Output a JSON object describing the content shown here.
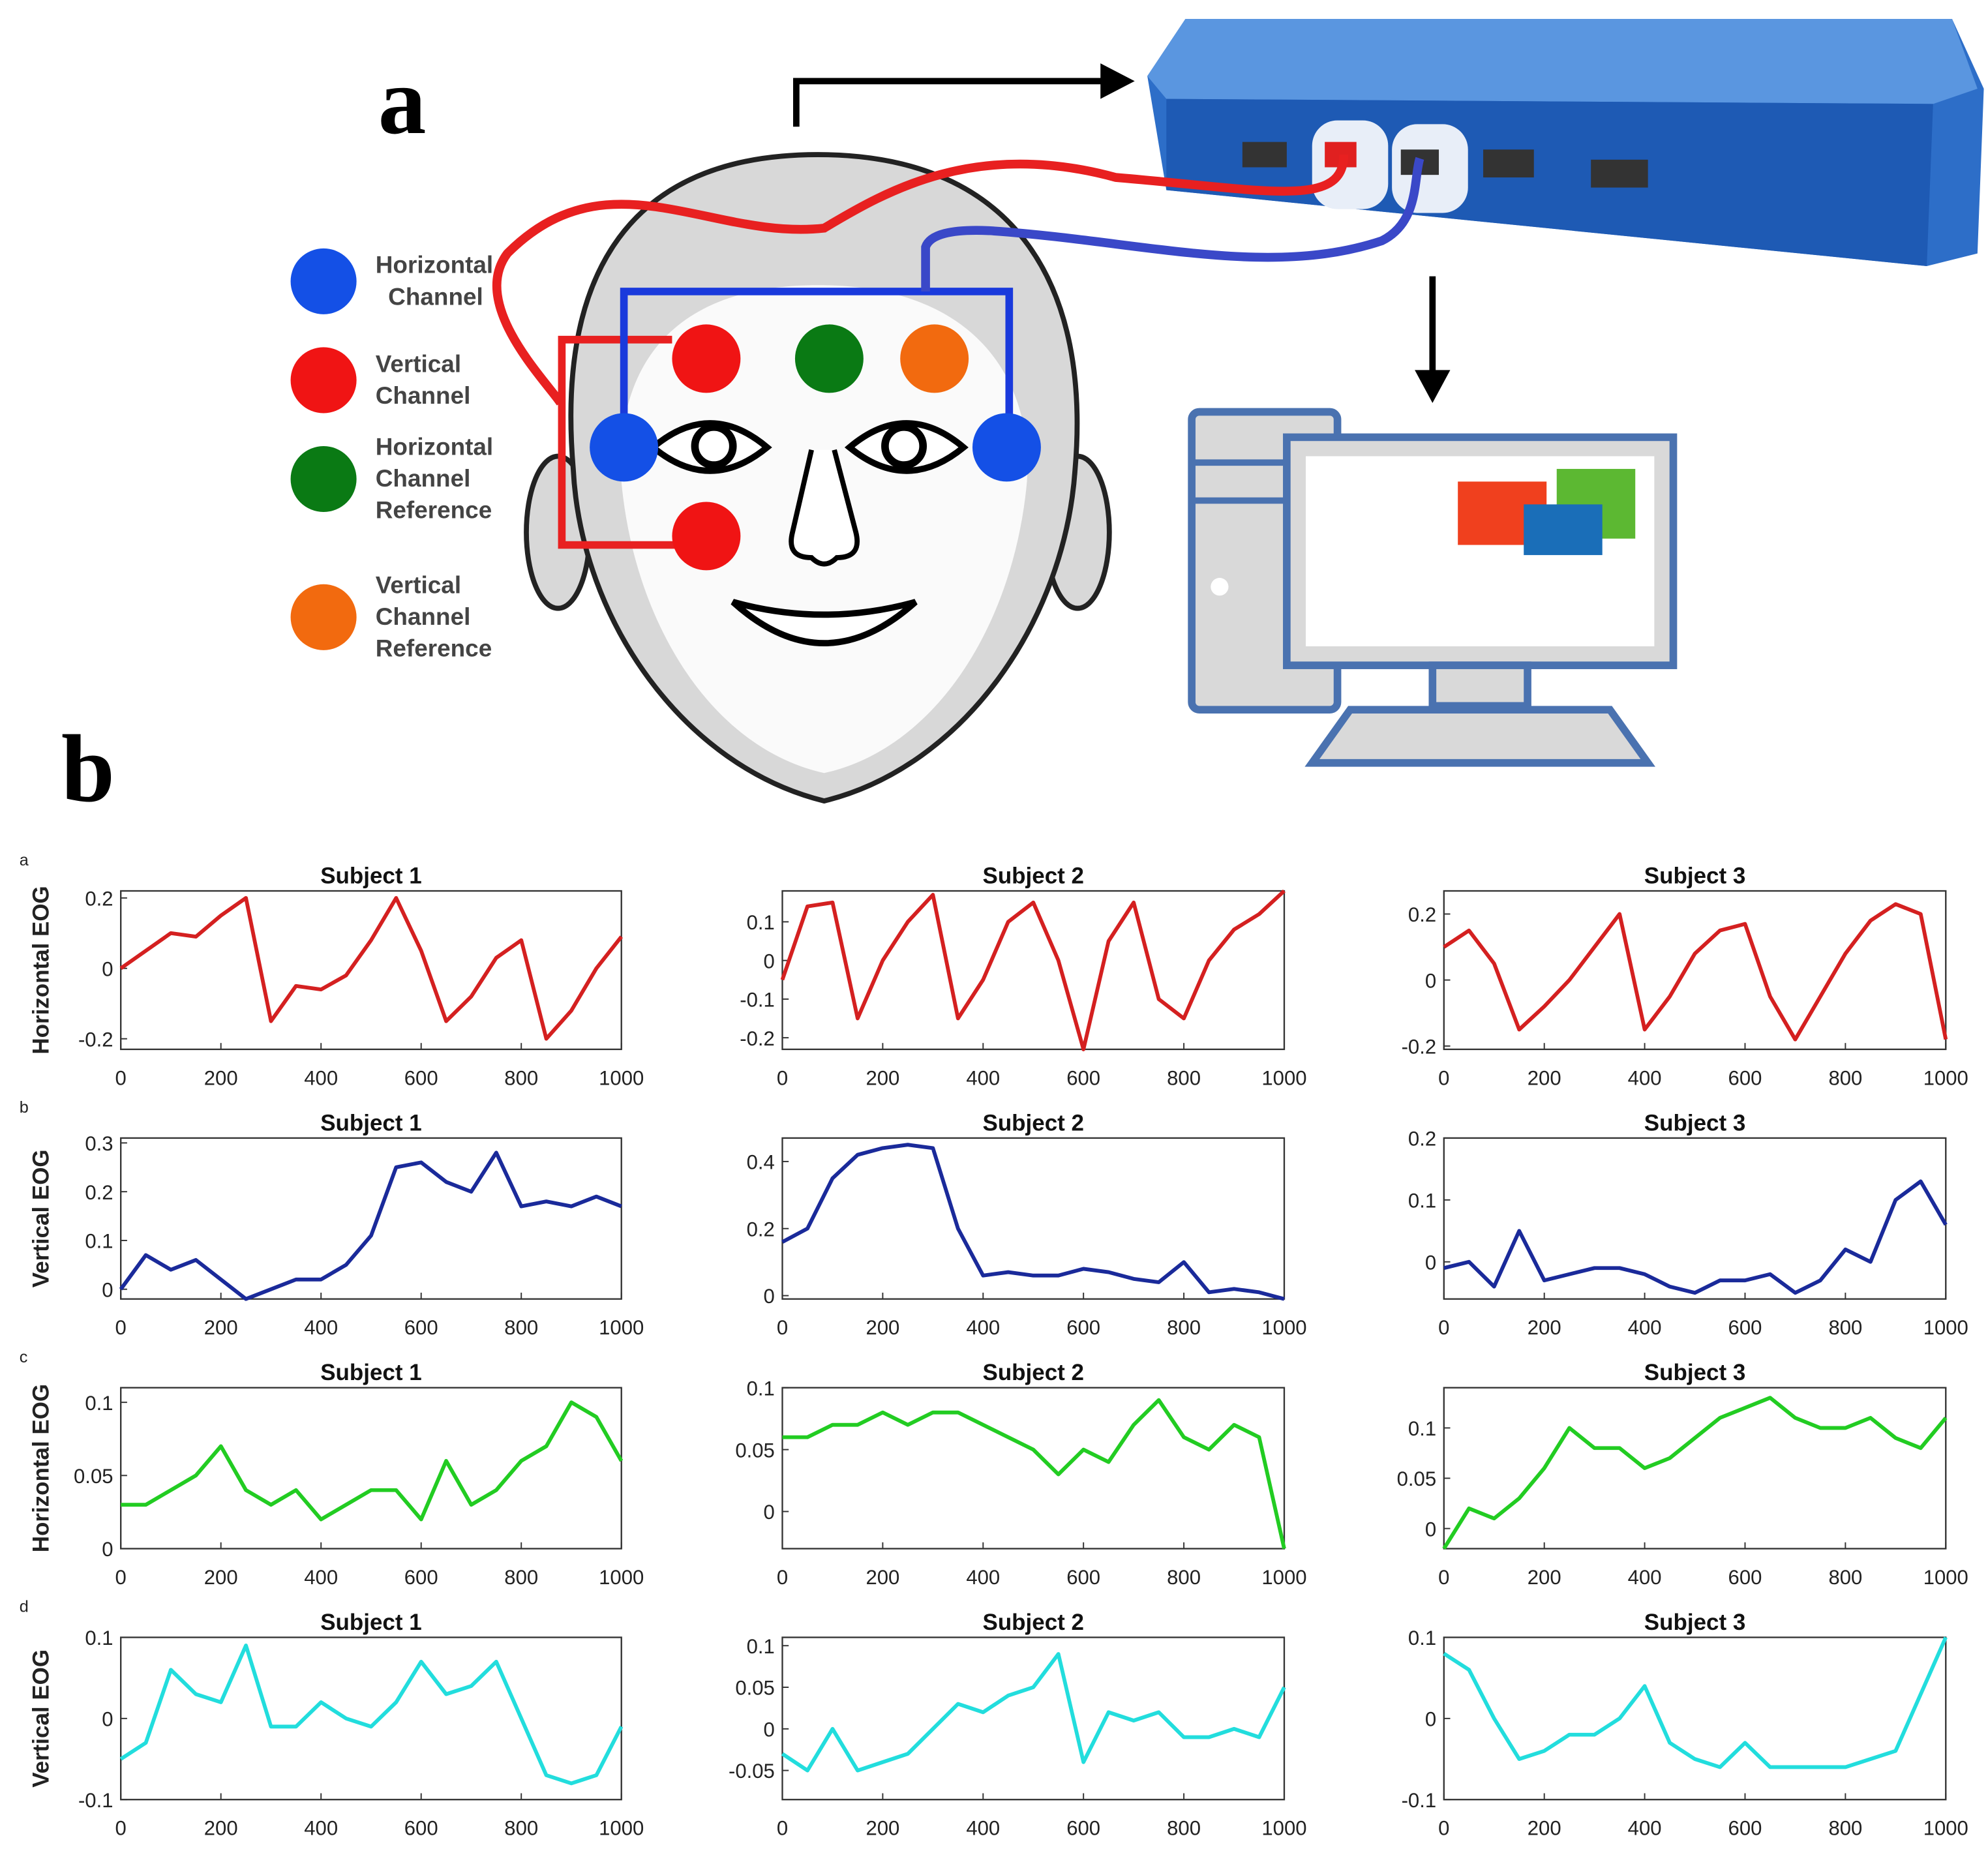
{
  "figure": {
    "panel_a": "a",
    "panel_b": "b",
    "legend": [
      {
        "color": "#1450e6",
        "lines": [
          "Horizontal",
          "Channel"
        ]
      },
      {
        "color": "#f01414",
        "lines": [
          "Vertical",
          "Channel"
        ]
      },
      {
        "color": "#0a7a14",
        "lines": [
          "Horizontal",
          "Channel",
          "Reference"
        ]
      },
      {
        "color": "#f26a0f",
        "lines": [
          "Vertical",
          "Channel",
          "Reference"
        ]
      }
    ]
  },
  "chart_data": [
    {
      "type": "line",
      "row_label": "a",
      "title": "Subject 1",
      "ylabel": "Horizontal EOG",
      "x": [
        0,
        50,
        100,
        150,
        200,
        250,
        300,
        350,
        400,
        450,
        500,
        550,
        600,
        650,
        700,
        750,
        800,
        850,
        900,
        950,
        1000
      ],
      "xlim": [
        0,
        1000
      ],
      "xticks": [
        0,
        200,
        400,
        600,
        800,
        1000
      ],
      "ylim": [
        -0.23,
        0.22
      ],
      "yticks": [
        -0.2,
        0,
        0.2
      ],
      "series": [
        {
          "color": "#d42020",
          "values": [
            0,
            0.05,
            0.1,
            0.09,
            0.15,
            0.2,
            -0.15,
            -0.05,
            -0.06,
            -0.02,
            0.08,
            0.2,
            0.05,
            -0.15,
            -0.08,
            0.03,
            0.08,
            -0.2,
            -0.12,
            0,
            0.09
          ]
        }
      ]
    },
    {
      "type": "line",
      "title": "Subject 2",
      "x": [
        0,
        50,
        100,
        150,
        200,
        250,
        300,
        350,
        400,
        450,
        500,
        550,
        600,
        650,
        700,
        750,
        800,
        850,
        900,
        950,
        1000
      ],
      "xlim": [
        0,
        1000
      ],
      "xticks": [
        0,
        200,
        400,
        600,
        800,
        1000
      ],
      "ylim": [
        -0.23,
        0.18
      ],
      "yticks": [
        -0.2,
        -0.1,
        0,
        0.1
      ],
      "series": [
        {
          "color": "#d42020",
          "values": [
            -0.05,
            0.14,
            0.15,
            -0.15,
            0,
            0.1,
            0.17,
            -0.15,
            -0.05,
            0.1,
            0.15,
            0,
            -0.23,
            0.05,
            0.15,
            -0.1,
            -0.15,
            0,
            0.08,
            0.12,
            0.18
          ]
        }
      ]
    },
    {
      "type": "line",
      "title": "Subject 3",
      "x": [
        0,
        50,
        100,
        150,
        200,
        250,
        300,
        350,
        400,
        450,
        500,
        550,
        600,
        650,
        700,
        750,
        800,
        850,
        900,
        950,
        1000
      ],
      "xlim": [
        0,
        1000
      ],
      "xticks": [
        0,
        200,
        400,
        600,
        800,
        1000
      ],
      "ylim": [
        -0.21,
        0.27
      ],
      "yticks": [
        -0.2,
        0,
        0.2
      ],
      "series": [
        {
          "color": "#d42020",
          "values": [
            0.1,
            0.15,
            0.05,
            -0.15,
            -0.08,
            0,
            0.1,
            0.2,
            -0.15,
            -0.05,
            0.08,
            0.15,
            0.17,
            -0.05,
            -0.18,
            -0.05,
            0.08,
            0.18,
            0.23,
            0.2,
            -0.18
          ]
        }
      ]
    },
    {
      "type": "line",
      "row_label": "b",
      "title": "Subject 1",
      "ylabel": "Vertical EOG",
      "x": [
        0,
        50,
        100,
        150,
        200,
        250,
        300,
        350,
        400,
        450,
        500,
        550,
        600,
        650,
        700,
        750,
        800,
        850,
        900,
        950,
        1000
      ],
      "xlim": [
        0,
        1000
      ],
      "xticks": [
        0,
        200,
        400,
        600,
        800,
        1000
      ],
      "ylim": [
        -0.02,
        0.31
      ],
      "yticks": [
        0,
        0.1,
        0.2,
        0.3
      ],
      "series": [
        {
          "color": "#1a2a9a",
          "values": [
            0,
            0.07,
            0.04,
            0.06,
            0.02,
            -0.02,
            0,
            0.02,
            0.02,
            0.05,
            0.11,
            0.25,
            0.26,
            0.22,
            0.2,
            0.28,
            0.17,
            0.18,
            0.17,
            0.19,
            0.17
          ]
        }
      ]
    },
    {
      "type": "line",
      "title": "Subject 2",
      "x": [
        0,
        50,
        100,
        150,
        200,
        250,
        300,
        350,
        400,
        450,
        500,
        550,
        600,
        650,
        700,
        750,
        800,
        850,
        900,
        950,
        1000
      ],
      "xlim": [
        0,
        1000
      ],
      "xticks": [
        0,
        200,
        400,
        600,
        800,
        1000
      ],
      "ylim": [
        -0.01,
        0.47
      ],
      "yticks": [
        0,
        0.2,
        0.4
      ],
      "series": [
        {
          "color": "#1a2a9a",
          "values": [
            0.16,
            0.2,
            0.35,
            0.42,
            0.44,
            0.45,
            0.44,
            0.2,
            0.06,
            0.07,
            0.06,
            0.06,
            0.08,
            0.07,
            0.05,
            0.04,
            0.1,
            0.01,
            0.02,
            0.01,
            -0.01
          ]
        }
      ]
    },
    {
      "type": "line",
      "title": "Subject 3",
      "x": [
        0,
        50,
        100,
        150,
        200,
        250,
        300,
        350,
        400,
        450,
        500,
        550,
        600,
        650,
        700,
        750,
        800,
        850,
        900,
        950,
        1000
      ],
      "xlim": [
        0,
        1000
      ],
      "xticks": [
        0,
        200,
        400,
        600,
        800,
        1000
      ],
      "ylim": [
        -0.06,
        0.2
      ],
      "yticks": [
        0,
        0.1,
        0.2
      ],
      "series": [
        {
          "color": "#1a2a9a",
          "values": [
            -0.01,
            0,
            -0.04,
            0.05,
            -0.03,
            -0.02,
            -0.01,
            -0.01,
            -0.02,
            -0.04,
            -0.05,
            -0.03,
            -0.03,
            -0.02,
            -0.05,
            -0.03,
            0.02,
            0,
            0.1,
            0.13,
            0.06
          ]
        }
      ]
    },
    {
      "type": "line",
      "row_label": "c",
      "title": "Subject 1",
      "ylabel": "Horizontal EOG",
      "x": [
        0,
        50,
        100,
        150,
        200,
        250,
        300,
        350,
        400,
        450,
        500,
        550,
        600,
        650,
        700,
        750,
        800,
        850,
        900,
        950,
        1000
      ],
      "xlim": [
        0,
        1000
      ],
      "xticks": [
        0,
        200,
        400,
        600,
        800,
        1000
      ],
      "ylim": [
        0,
        0.11
      ],
      "yticks": [
        0,
        0.05,
        0.1
      ],
      "series": [
        {
          "color": "#22cc22",
          "values": [
            0.03,
            0.03,
            0.04,
            0.05,
            0.07,
            0.04,
            0.03,
            0.04,
            0.02,
            0.03,
            0.04,
            0.04,
            0.02,
            0.06,
            0.03,
            0.04,
            0.06,
            0.07,
            0.1,
            0.09,
            0.06
          ]
        }
      ]
    },
    {
      "type": "line",
      "title": "Subject 2",
      "x": [
        0,
        50,
        100,
        150,
        200,
        250,
        300,
        350,
        400,
        450,
        500,
        550,
        600,
        650,
        700,
        750,
        800,
        850,
        900,
        950,
        1000
      ],
      "xlim": [
        0,
        1000
      ],
      "xticks": [
        0,
        200,
        400,
        600,
        800,
        1000
      ],
      "ylim": [
        -0.03,
        0.1
      ],
      "yticks": [
        0,
        0.05,
        0.1
      ],
      "series": [
        {
          "color": "#22cc22",
          "values": [
            0.06,
            0.06,
            0.07,
            0.07,
            0.08,
            0.07,
            0.08,
            0.08,
            0.07,
            0.06,
            0.05,
            0.03,
            0.05,
            0.04,
            0.07,
            0.09,
            0.06,
            0.05,
            0.07,
            0.06,
            -0.03
          ]
        }
      ]
    },
    {
      "type": "line",
      "title": "Subject 3",
      "x": [
        0,
        50,
        100,
        150,
        200,
        250,
        300,
        350,
        400,
        450,
        500,
        550,
        600,
        650,
        700,
        750,
        800,
        850,
        900,
        950,
        1000
      ],
      "xlim": [
        0,
        1000
      ],
      "xticks": [
        0,
        200,
        400,
        600,
        800,
        1000
      ],
      "ylim": [
        -0.02,
        0.14
      ],
      "yticks": [
        0,
        0.05,
        0.1
      ],
      "series": [
        {
          "color": "#22cc22",
          "values": [
            -0.02,
            0.02,
            0.01,
            0.03,
            0.06,
            0.1,
            0.08,
            0.08,
            0.06,
            0.07,
            0.09,
            0.11,
            0.12,
            0.13,
            0.11,
            0.1,
            0.1,
            0.11,
            0.09,
            0.08,
            0.11
          ]
        }
      ]
    },
    {
      "type": "line",
      "row_label": "d",
      "title": "Subject 1",
      "ylabel": "Vertical EOG",
      "x": [
        0,
        50,
        100,
        150,
        200,
        250,
        300,
        350,
        400,
        450,
        500,
        550,
        600,
        650,
        700,
        750,
        800,
        850,
        900,
        950,
        1000
      ],
      "xlim": [
        0,
        1000
      ],
      "xticks": [
        0,
        200,
        400,
        600,
        800,
        1000
      ],
      "ylim": [
        -0.1,
        0.1
      ],
      "yticks": [
        -0.1,
        0,
        0.1
      ],
      "series": [
        {
          "color": "#22dddd",
          "values": [
            -0.05,
            -0.03,
            0.06,
            0.03,
            0.02,
            0.09,
            -0.01,
            -0.01,
            0.02,
            0,
            -0.01,
            0.02,
            0.07,
            0.03,
            0.04,
            0.07,
            0,
            -0.07,
            -0.08,
            -0.07,
            -0.01
          ]
        }
      ]
    },
    {
      "type": "line",
      "title": "Subject 2",
      "x": [
        0,
        50,
        100,
        150,
        200,
        250,
        300,
        350,
        400,
        450,
        500,
        550,
        600,
        650,
        700,
        750,
        800,
        850,
        900,
        950,
        1000
      ],
      "xlim": [
        0,
        1000
      ],
      "xticks": [
        0,
        200,
        400,
        600,
        800,
        1000
      ],
      "ylim": [
        -0.085,
        0.11
      ],
      "yticks": [
        -0.05,
        0,
        0.05,
        0.1
      ],
      "series": [
        {
          "color": "#22dddd",
          "values": [
            -0.03,
            -0.05,
            0,
            -0.05,
            -0.04,
            -0.03,
            0,
            0.03,
            0.02,
            0.04,
            0.05,
            0.09,
            -0.04,
            0.02,
            0.01,
            0.02,
            -0.01,
            -0.01,
            0,
            -0.01,
            0.05
          ]
        }
      ]
    },
    {
      "type": "line",
      "title": "Subject 3",
      "x": [
        0,
        50,
        100,
        150,
        200,
        250,
        300,
        350,
        400,
        450,
        500,
        550,
        600,
        650,
        700,
        750,
        800,
        850,
        900,
        950,
        1000
      ],
      "xlim": [
        0,
        1000
      ],
      "xticks": [
        0,
        200,
        400,
        600,
        800,
        1000
      ],
      "ylim": [
        -0.1,
        0.1
      ],
      "yticks": [
        -0.1,
        0,
        0.1
      ],
      "series": [
        {
          "color": "#22dddd",
          "values": [
            0.08,
            0.06,
            0,
            -0.05,
            -0.04,
            -0.02,
            -0.02,
            0,
            0.04,
            -0.03,
            -0.05,
            -0.06,
            -0.03,
            -0.06,
            -0.06,
            -0.06,
            -0.06,
            -0.05,
            -0.04,
            0.03,
            0.1
          ]
        }
      ]
    }
  ]
}
